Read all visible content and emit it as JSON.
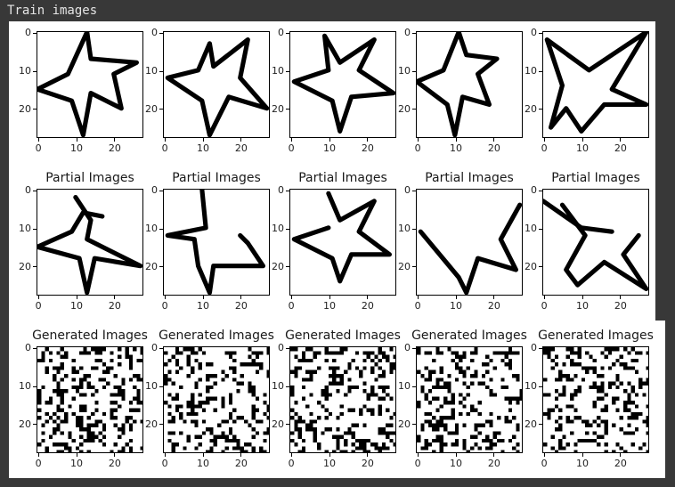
{
  "cell_output": {
    "title": "Train images"
  },
  "rows": [
    {
      "row_id": "train",
      "panel_title": "",
      "panels": [
        {
          "shape": "star-1"
        },
        {
          "shape": "star-2"
        },
        {
          "shape": "star-3"
        },
        {
          "shape": "star-4"
        },
        {
          "shape": "star-5"
        }
      ]
    },
    {
      "row_id": "partial",
      "panel_title": "Partial Images",
      "panels": [
        {
          "shape": "partial-1"
        },
        {
          "shape": "partial-2"
        },
        {
          "shape": "partial-3"
        },
        {
          "shape": "partial-4"
        },
        {
          "shape": "partial-5"
        }
      ]
    },
    {
      "row_id": "generated",
      "panel_title": "Generated Images",
      "panels": [
        {
          "shape": "noise-1"
        },
        {
          "shape": "noise-2"
        },
        {
          "shape": "noise-3"
        },
        {
          "shape": "noise-4"
        },
        {
          "shape": "noise-5"
        }
      ]
    }
  ],
  "axes": {
    "y_ticks": [
      "0",
      "10",
      "20"
    ],
    "x_ticks": [
      "0",
      "10",
      "20"
    ],
    "extent": 28
  },
  "colors": {
    "ink": "#000000",
    "paper": "#ffffff",
    "background": "#383838"
  }
}
